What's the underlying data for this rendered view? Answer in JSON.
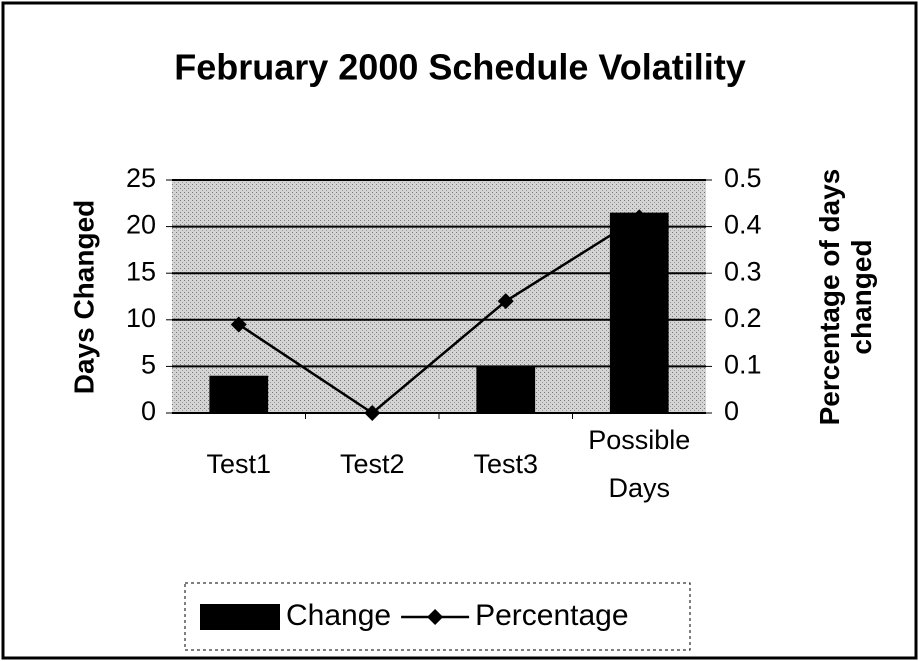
{
  "chart_data": {
    "type": "bar-line",
    "title": "February 2000 Schedule Volatility",
    "y_label": "Days Changed",
    "y2_label": "Percentage of days changed",
    "categories": [
      "Test1",
      "Test2",
      "Test3",
      "Possible Days"
    ],
    "series": [
      {
        "name": "Change",
        "type": "bar",
        "color": "#000000",
        "values": [
          4,
          0,
          5,
          21.5
        ]
      },
      {
        "name": "Percentage",
        "type": "line",
        "color": "#000000",
        "axis": "y2",
        "values": [
          0.19,
          0,
          0.24,
          0.42
        ]
      }
    ],
    "ylim": [
      0,
      25
    ],
    "yticks": [
      0,
      5,
      10,
      15,
      20,
      25
    ],
    "y2lim": [
      0,
      0.5
    ],
    "y2ticks": [
      0,
      0.1,
      0.2,
      0.3,
      0.4,
      0.5
    ],
    "grid": true,
    "legend": "bottom"
  }
}
